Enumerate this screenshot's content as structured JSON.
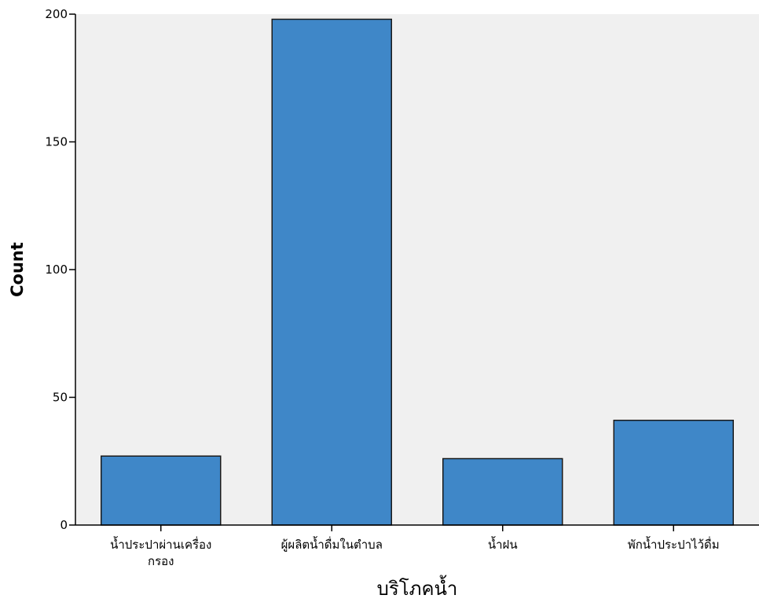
{
  "chart_data": {
    "type": "bar",
    "title": "",
    "xlabel": "บริโภคน้ำ",
    "ylabel": "Count",
    "ylim": [
      0,
      200
    ],
    "yticks": [
      0,
      50,
      100,
      150,
      200
    ],
    "grid": false,
    "categories": [
      [
        "น้ำประปาผ่านเครื่อง",
        "กรอง"
      ],
      [
        "ผู้ผลิตน้ำดื่มในตำบล"
      ],
      [
        "น้ำฝน"
      ],
      [
        "พักน้ำประปาไว้ดื่ม"
      ]
    ],
    "values": [
      27,
      198,
      26,
      41
    ],
    "colors": {
      "bar": "#3f87c8",
      "bar_stroke": "#1a1a1a",
      "plot_bg": "#f0f0f0",
      "axis": "#000000"
    }
  }
}
